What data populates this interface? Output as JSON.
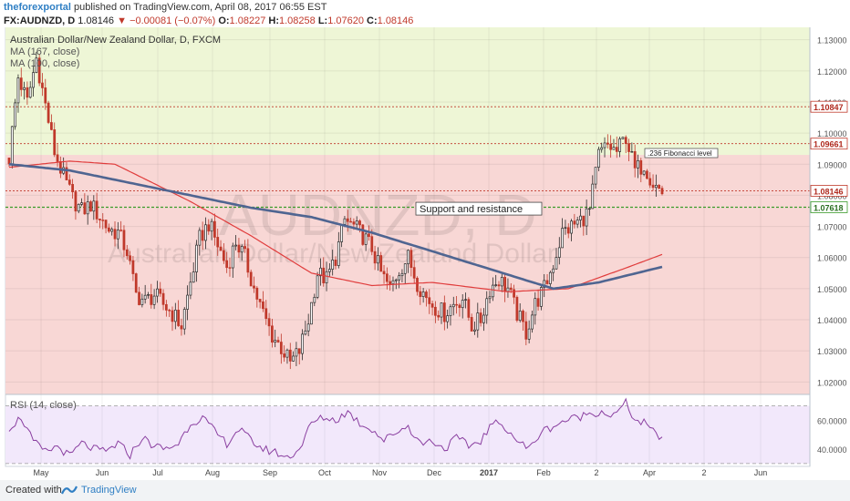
{
  "header": {
    "author": "theforexportal",
    "published": "published on TradingView.com, April 08, 2017 06:55 EST",
    "symbol": "FX:AUDNZD, D",
    "last": "1.08146",
    "change": "−0.00081 (−0.07%)",
    "open_label": "O:",
    "open": "1.08227",
    "high_label": "H:",
    "high": "1.08258",
    "low_label": "L:",
    "low": "1.07620",
    "close_label": "C:",
    "close": "1.08146"
  },
  "footer": {
    "created_with": "Created with",
    "brand": "TradingView"
  },
  "colors": {
    "up": "#2a2a2a",
    "down": "#c0392b",
    "green_zone": "#eef6d6",
    "red_zone": "#f8d7d5",
    "ma_fast": "#e03c3c",
    "ma_slow": "#4f6591",
    "rsi_line": "#8a3fa0",
    "rsi_bg": "#f2e8fb",
    "axis_green": "#3a9b2a"
  },
  "chart_data": {
    "type": "candlestick",
    "title": "Australian Dollar/New Zealand Dollar, D, FXCM",
    "watermark": "AUDNZD, D",
    "watermark_sub": "Australian Dollar/New Zealand Dollar",
    "indicators": [
      "MA (167, close)",
      "MA (100, close)"
    ],
    "y_ticks": [
      "1.13000",
      "1.12000",
      "1.11000",
      "1.10000",
      "1.09000",
      "1.08000",
      "1.07000",
      "1.06000",
      "1.05000",
      "1.04000",
      "1.03000",
      "1.02000"
    ],
    "ylim": [
      1.016,
      1.134
    ],
    "x_labels": [
      "May",
      "Jun",
      "Jul",
      "Aug",
      "Sep",
      "Oct",
      "Nov",
      "Dec",
      "2017",
      "Feb",
      "2",
      "Apr",
      "2",
      "Jun"
    ],
    "green_zone": [
      1.093,
      1.134
    ],
    "red_zone": [
      1.016,
      1.093
    ],
    "levels": [
      {
        "value": 1.10847,
        "label": "1.10847",
        "color": "#c0392b"
      },
      {
        "value": 1.09661,
        "label": "1.09661",
        "color": "#c0392b"
      },
      {
        "value": 1.08146,
        "label": "1.08146",
        "color": "#c0392b"
      },
      {
        "value": 1.07618,
        "label": "1.07618",
        "color": "#3a9b2a"
      }
    ],
    "annotations": [
      {
        "text": "Support and resistance",
        "value": 1.076
      },
      {
        "text": ".236 Fibonacci level",
        "value": 1.093
      }
    ],
    "price_anchors": [
      [
        0,
        1.092
      ],
      [
        3,
        1.118
      ],
      [
        6,
        1.11
      ],
      [
        9,
        1.124
      ],
      [
        12,
        1.109
      ],
      [
        15,
        1.094
      ],
      [
        18,
        1.086
      ],
      [
        21,
        1.079
      ],
      [
        24,
        1.075
      ],
      [
        27,
        1.077
      ],
      [
        30,
        1.073
      ],
      [
        33,
        1.069
      ],
      [
        36,
        1.068
      ],
      [
        39,
        1.062
      ],
      [
        42,
        1.048
      ],
      [
        45,
        1.046
      ],
      [
        48,
        1.048
      ],
      [
        51,
        1.045
      ],
      [
        54,
        1.042
      ],
      [
        57,
        1.038
      ],
      [
        60,
        1.052
      ],
      [
        63,
        1.066
      ],
      [
        66,
        1.071
      ],
      [
        69,
        1.064
      ],
      [
        72,
        1.057
      ],
      [
        75,
        1.065
      ],
      [
        78,
        1.06
      ],
      [
        81,
        1.05
      ],
      [
        84,
        1.042
      ],
      [
        87,
        1.035
      ],
      [
        90,
        1.031
      ],
      [
        93,
        1.026
      ],
      [
        96,
        1.03
      ],
      [
        99,
        1.04
      ],
      [
        102,
        1.055
      ],
      [
        105,
        1.053
      ],
      [
        108,
        1.06
      ],
      [
        111,
        1.072
      ],
      [
        114,
        1.07
      ],
      [
        117,
        1.067
      ],
      [
        120,
        1.063
      ],
      [
        123,
        1.055
      ],
      [
        126,
        1.05
      ],
      [
        129,
        1.056
      ],
      [
        132,
        1.06
      ],
      [
        135,
        1.052
      ],
      [
        138,
        1.047
      ],
      [
        141,
        1.044
      ],
      [
        144,
        1.042
      ],
      [
        147,
        1.045
      ],
      [
        150,
        1.047
      ],
      [
        153,
        1.038
      ],
      [
        156,
        1.04
      ],
      [
        159,
        1.05
      ],
      [
        162,
        1.053
      ],
      [
        165,
        1.05
      ],
      [
        168,
        1.042
      ],
      [
        171,
        1.036
      ],
      [
        174,
        1.045
      ],
      [
        177,
        1.05
      ],
      [
        180,
        1.058
      ],
      [
        183,
        1.068
      ],
      [
        186,
        1.07
      ],
      [
        189,
        1.072
      ],
      [
        192,
        1.075
      ],
      [
        195,
        1.093
      ],
      [
        198,
        1.096
      ],
      [
        201,
        1.094
      ],
      [
        204,
        1.099
      ],
      [
        207,
        1.088
      ],
      [
        210,
        1.09
      ],
      [
        213,
        1.084
      ],
      [
        216,
        1.081
      ]
    ],
    "ma_fast_anchors": [
      [
        0,
        1.089
      ],
      [
        20,
        1.091
      ],
      [
        35,
        1.09
      ],
      [
        60,
        1.078
      ],
      [
        80,
        1.067
      ],
      [
        100,
        1.055
      ],
      [
        120,
        1.051
      ],
      [
        140,
        1.052
      ],
      [
        165,
        1.049
      ],
      [
        185,
        1.05
      ],
      [
        205,
        1.057
      ],
      [
        216,
        1.061
      ]
    ],
    "ma_slow_anchors": [
      [
        0,
        1.09
      ],
      [
        20,
        1.088
      ],
      [
        40,
        1.084
      ],
      [
        60,
        1.08
      ],
      [
        80,
        1.076
      ],
      [
        100,
        1.073
      ],
      [
        120,
        1.068
      ],
      [
        140,
        1.062
      ],
      [
        160,
        1.056
      ],
      [
        180,
        1.05
      ],
      [
        195,
        1.052
      ],
      [
        216,
        1.057
      ]
    ],
    "rsi": {
      "label": "RSI (14, close)",
      "ticks": [
        "60.0000",
        "40.0000"
      ],
      "ylim": [
        28,
        78
      ],
      "band": [
        30,
        70
      ],
      "anchors": [
        [
          0,
          55
        ],
        [
          4,
          62
        ],
        [
          8,
          45
        ],
        [
          12,
          38
        ],
        [
          16,
          42
        ],
        [
          20,
          35
        ],
        [
          24,
          44
        ],
        [
          28,
          40
        ],
        [
          32,
          38
        ],
        [
          36,
          44
        ],
        [
          40,
          36
        ],
        [
          44,
          48
        ],
        [
          48,
          42
        ],
        [
          52,
          40
        ],
        [
          56,
          44
        ],
        [
          60,
          58
        ],
        [
          64,
          62
        ],
        [
          68,
          52
        ],
        [
          72,
          44
        ],
        [
          76,
          54
        ],
        [
          80,
          46
        ],
        [
          84,
          40
        ],
        [
          88,
          38
        ],
        [
          92,
          34
        ],
        [
          96,
          40
        ],
        [
          100,
          58
        ],
        [
          104,
          62
        ],
        [
          108,
          60
        ],
        [
          112,
          66
        ],
        [
          116,
          58
        ],
        [
          120,
          54
        ],
        [
          124,
          46
        ],
        [
          128,
          52
        ],
        [
          132,
          56
        ],
        [
          136,
          44
        ],
        [
          140,
          46
        ],
        [
          144,
          40
        ],
        [
          148,
          48
        ],
        [
          152,
          42
        ],
        [
          156,
          46
        ],
        [
          160,
          58
        ],
        [
          164,
          56
        ],
        [
          168,
          46
        ],
        [
          172,
          40
        ],
        [
          176,
          52
        ],
        [
          180,
          56
        ],
        [
          184,
          60
        ],
        [
          188,
          62
        ],
        [
          192,
          65
        ],
        [
          196,
          66
        ],
        [
          200,
          63
        ],
        [
          204,
          72
        ],
        [
          207,
          60
        ],
        [
          210,
          58
        ],
        [
          213,
          52
        ],
        [
          216,
          48
        ]
      ]
    }
  }
}
